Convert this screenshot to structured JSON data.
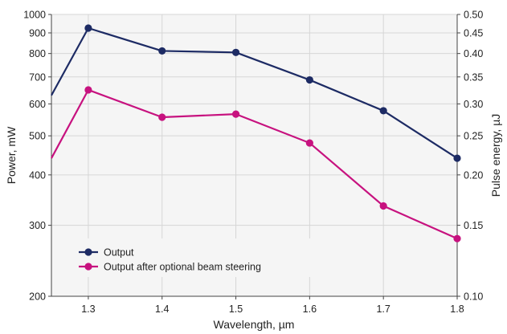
{
  "chart_data": {
    "type": "line",
    "xlabel": "Wavelength, µm",
    "ylabel": "Power, mW",
    "y2label": "Pulse energy, µJ",
    "xlim": [
      1.25,
      1.8
    ],
    "ylim": [
      200,
      1000
    ],
    "y2lim": [
      0.1,
      0.5
    ],
    "yscale": "log",
    "y2scale": "log",
    "grid": true,
    "legend_position": "bottom-left",
    "x_ticks": [
      "1.3",
      "1.4",
      "1.5",
      "1.6",
      "1.7",
      "1.8"
    ],
    "y_ticks": [
      "200",
      "300",
      "400",
      "500",
      "600",
      "700",
      "800",
      "900",
      "1000"
    ],
    "y2_ticks": [
      "0.10",
      "0.15",
      "0.20",
      "0.25",
      "0.30",
      "0.35",
      "0.40",
      "0.45",
      "0.50"
    ],
    "colors": {
      "background": "#f5f5f5",
      "grid": "#d6d6d6",
      "axis": "#444444"
    },
    "series": [
      {
        "name": "Output",
        "color": "#1d2b64",
        "x": [
          1.25,
          1.3,
          1.4,
          1.5,
          1.6,
          1.7,
          1.8
        ],
        "y": [
          630,
          925,
          812,
          805,
          688,
          577,
          440
        ],
        "markers_at": [
          1.3,
          1.4,
          1.5,
          1.6,
          1.7,
          1.8
        ]
      },
      {
        "name": "Output after optional beam steering",
        "color": "#c7127f",
        "x": [
          1.25,
          1.3,
          1.4,
          1.5,
          1.6,
          1.7,
          1.8
        ],
        "y": [
          440,
          650,
          556,
          566,
          480,
          335,
          278
        ],
        "markers_at": [
          1.3,
          1.4,
          1.5,
          1.6,
          1.7,
          1.8
        ]
      }
    ]
  }
}
